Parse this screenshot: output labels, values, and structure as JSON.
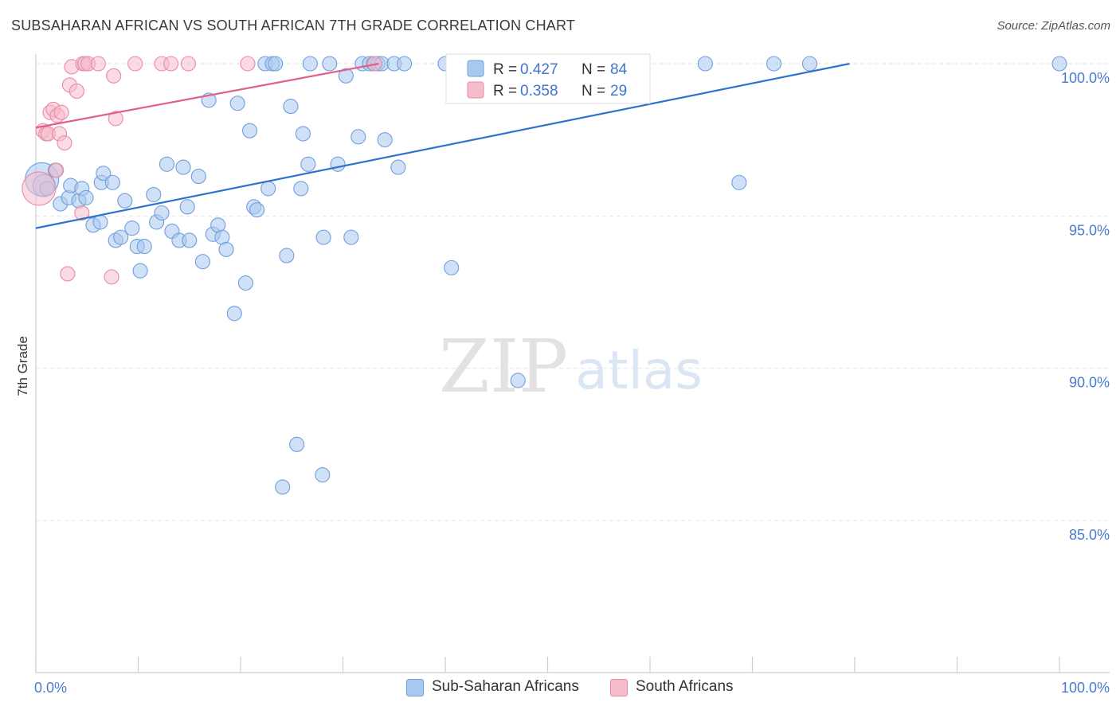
{
  "header": {
    "title": "SUBSAHARAN AFRICAN VS SOUTH AFRICAN 7TH GRADE CORRELATION CHART",
    "source": "Source: ZipAtlas.com"
  },
  "watermark": {
    "zip": "ZIP",
    "atlas": "atlas"
  },
  "colors": {
    "blue_fill": "#a9c8f0",
    "blue_stroke": "#6f9fdc",
    "blue_line": "#2f72cc",
    "pink_fill": "#f6bccc",
    "pink_stroke": "#e88aa6",
    "pink_line": "#e0608a",
    "tick_text": "#4a7bd0",
    "grid": "#e6e6e6"
  },
  "legend_box": {
    "rows": [
      {
        "r_label": "R = ",
        "r_value": "0.427",
        "n_label": "N = ",
        "n_value": "84",
        "series": "blue"
      },
      {
        "r_label": "R = ",
        "r_value": "0.358",
        "n_label": "N = ",
        "n_value": "29",
        "series": "pink"
      }
    ]
  },
  "legend_bottom": [
    {
      "label": "Sub-Saharan Africans",
      "series": "blue"
    },
    {
      "label": "South Africans",
      "series": "pink"
    }
  ],
  "chart_data": {
    "type": "scatter",
    "title": "SUBSAHARAN AFRICAN VS SOUTH AFRICAN 7TH GRADE CORRELATION CHART",
    "xlabel": "",
    "ylabel": "7th Grade",
    "xlim": [
      0,
      100
    ],
    "ylim": [
      80.5,
      101.0
    ],
    "x_tick_labels": [
      {
        "value": 0,
        "label": "0.0%"
      },
      {
        "value": 100,
        "label": "100.0%"
      }
    ],
    "y_ticks": [
      {
        "value": 100,
        "label": "100.0%"
      },
      {
        "value": 95,
        "label": "95.0%"
      },
      {
        "value": 90,
        "label": "90.0%"
      },
      {
        "value": 85,
        "label": "85.0%"
      }
    ],
    "grid": true,
    "legend_position": "top-center",
    "series": [
      {
        "name": "Sub-Saharan Africans",
        "color": "#a9c8f0",
        "R": 0.427,
        "N": 84,
        "trend": {
          "x": [
            0,
            79.5
          ],
          "y": [
            94.6,
            100.0
          ]
        },
        "points": [
          {
            "x": 0.6,
            "y": 96.2,
            "s": 3
          },
          {
            "x": 0.8,
            "y": 96.0,
            "s": 2
          },
          {
            "x": 1.1,
            "y": 95.9,
            "s": 1
          },
          {
            "x": 1.9,
            "y": 96.5,
            "s": 1
          },
          {
            "x": 2.4,
            "y": 95.4,
            "s": 1
          },
          {
            "x": 3.2,
            "y": 95.6,
            "s": 1
          },
          {
            "x": 3.4,
            "y": 96.0,
            "s": 1
          },
          {
            "x": 4.2,
            "y": 95.5,
            "s": 1
          },
          {
            "x": 4.5,
            "y": 95.9,
            "s": 1
          },
          {
            "x": 4.9,
            "y": 95.6,
            "s": 1
          },
          {
            "x": 5.6,
            "y": 94.7,
            "s": 1
          },
          {
            "x": 6.4,
            "y": 96.1,
            "s": 1
          },
          {
            "x": 6.3,
            "y": 94.8,
            "s": 1
          },
          {
            "x": 6.6,
            "y": 96.4,
            "s": 1
          },
          {
            "x": 7.5,
            "y": 96.1,
            "s": 1
          },
          {
            "x": 7.8,
            "y": 94.2,
            "s": 1
          },
          {
            "x": 8.3,
            "y": 94.3,
            "s": 1
          },
          {
            "x": 8.7,
            "y": 95.5,
            "s": 1
          },
          {
            "x": 9.4,
            "y": 94.6,
            "s": 1
          },
          {
            "x": 9.9,
            "y": 94.0,
            "s": 1
          },
          {
            "x": 10.2,
            "y": 93.2,
            "s": 1
          },
          {
            "x": 10.6,
            "y": 94.0,
            "s": 1
          },
          {
            "x": 11.5,
            "y": 95.7,
            "s": 1
          },
          {
            "x": 11.8,
            "y": 94.8,
            "s": 1
          },
          {
            "x": 12.3,
            "y": 95.1,
            "s": 1
          },
          {
            "x": 12.8,
            "y": 96.7,
            "s": 1
          },
          {
            "x": 13.3,
            "y": 94.5,
            "s": 1
          },
          {
            "x": 14.0,
            "y": 94.2,
            "s": 1
          },
          {
            "x": 14.4,
            "y": 96.6,
            "s": 1
          },
          {
            "x": 14.8,
            "y": 95.3,
            "s": 1
          },
          {
            "x": 15.0,
            "y": 94.2,
            "s": 1
          },
          {
            "x": 15.9,
            "y": 96.3,
            "s": 1
          },
          {
            "x": 16.3,
            "y": 93.5,
            "s": 1
          },
          {
            "x": 16.9,
            "y": 98.8,
            "s": 1
          },
          {
            "x": 17.3,
            "y": 94.4,
            "s": 1
          },
          {
            "x": 17.8,
            "y": 94.7,
            "s": 1
          },
          {
            "x": 18.2,
            "y": 94.3,
            "s": 1
          },
          {
            "x": 18.6,
            "y": 93.9,
            "s": 1
          },
          {
            "x": 19.4,
            "y": 91.8,
            "s": 1
          },
          {
            "x": 19.7,
            "y": 98.7,
            "s": 1
          },
          {
            "x": 20.5,
            "y": 92.8,
            "s": 1
          },
          {
            "x": 20.9,
            "y": 97.8,
            "s": 1
          },
          {
            "x": 21.3,
            "y": 95.3,
            "s": 1
          },
          {
            "x": 21.6,
            "y": 95.2,
            "s": 1
          },
          {
            "x": 22.4,
            "y": 100.0,
            "s": 1
          },
          {
            "x": 22.7,
            "y": 95.9,
            "s": 1
          },
          {
            "x": 23.1,
            "y": 100.0,
            "s": 1
          },
          {
            "x": 23.4,
            "y": 100.0,
            "s": 1
          },
          {
            "x": 24.1,
            "y": 86.1,
            "s": 1
          },
          {
            "x": 24.5,
            "y": 93.7,
            "s": 1
          },
          {
            "x": 24.9,
            "y": 98.6,
            "s": 1
          },
          {
            "x": 25.5,
            "y": 87.5,
            "s": 1
          },
          {
            "x": 25.9,
            "y": 95.9,
            "s": 1
          },
          {
            "x": 26.1,
            "y": 97.7,
            "s": 1
          },
          {
            "x": 26.6,
            "y": 96.7,
            "s": 1
          },
          {
            "x": 26.8,
            "y": 100.0,
            "s": 1
          },
          {
            "x": 28.0,
            "y": 86.5,
            "s": 1
          },
          {
            "x": 28.1,
            "y": 94.3,
            "s": 1
          },
          {
            "x": 28.7,
            "y": 100.0,
            "s": 1
          },
          {
            "x": 29.5,
            "y": 96.7,
            "s": 1
          },
          {
            "x": 30.3,
            "y": 99.6,
            "s": 1
          },
          {
            "x": 30.8,
            "y": 94.3,
            "s": 1
          },
          {
            "x": 31.5,
            "y": 97.6,
            "s": 1
          },
          {
            "x": 31.9,
            "y": 100.0,
            "s": 1
          },
          {
            "x": 32.6,
            "y": 100.0,
            "s": 1
          },
          {
            "x": 33.0,
            "y": 100.0,
            "s": 1
          },
          {
            "x": 33.4,
            "y": 100.0,
            "s": 1
          },
          {
            "x": 33.8,
            "y": 100.0,
            "s": 1
          },
          {
            "x": 34.1,
            "y": 97.5,
            "s": 1
          },
          {
            "x": 35.0,
            "y": 100.0,
            "s": 1
          },
          {
            "x": 35.4,
            "y": 96.6,
            "s": 1
          },
          {
            "x": 36.0,
            "y": 100.0,
            "s": 1
          },
          {
            "x": 40.0,
            "y": 100.0,
            "s": 1
          },
          {
            "x": 40.6,
            "y": 93.3,
            "s": 1
          },
          {
            "x": 41.2,
            "y": 100.0,
            "s": 1
          },
          {
            "x": 47.1,
            "y": 89.6,
            "s": 1
          },
          {
            "x": 53.5,
            "y": 100.0,
            "s": 1
          },
          {
            "x": 55.9,
            "y": 100.0,
            "s": 1
          },
          {
            "x": 59.3,
            "y": 100.0,
            "s": 1
          },
          {
            "x": 65.4,
            "y": 100.0,
            "s": 1
          },
          {
            "x": 68.7,
            "y": 96.1,
            "s": 1
          },
          {
            "x": 72.1,
            "y": 100.0,
            "s": 1
          },
          {
            "x": 75.6,
            "y": 100.0,
            "s": 1
          },
          {
            "x": 100.0,
            "y": 100.0,
            "s": 1
          }
        ]
      },
      {
        "name": "South Africans",
        "color": "#f6bccc",
        "R": 0.358,
        "N": 29,
        "trend": {
          "x": [
            0,
            33.5
          ],
          "y": [
            97.9,
            100.0
          ]
        },
        "points": [
          {
            "x": 0.3,
            "y": 95.9,
            "s": 3
          },
          {
            "x": 0.7,
            "y": 97.8,
            "s": 1
          },
          {
            "x": 1.0,
            "y": 97.7,
            "s": 1
          },
          {
            "x": 1.2,
            "y": 97.7,
            "s": 1
          },
          {
            "x": 1.4,
            "y": 98.4,
            "s": 1
          },
          {
            "x": 1.7,
            "y": 98.5,
            "s": 1
          },
          {
            "x": 2.0,
            "y": 96.5,
            "s": 1
          },
          {
            "x": 2.1,
            "y": 98.3,
            "s": 1
          },
          {
            "x": 2.3,
            "y": 97.7,
            "s": 1
          },
          {
            "x": 2.5,
            "y": 98.4,
            "s": 1
          },
          {
            "x": 2.8,
            "y": 97.4,
            "s": 1
          },
          {
            "x": 3.1,
            "y": 93.1,
            "s": 1
          },
          {
            "x": 3.3,
            "y": 99.3,
            "s": 1
          },
          {
            "x": 3.5,
            "y": 99.9,
            "s": 1
          },
          {
            "x": 4.0,
            "y": 99.1,
            "s": 1
          },
          {
            "x": 4.5,
            "y": 95.1,
            "s": 1
          },
          {
            "x": 4.6,
            "y": 100.0,
            "s": 1
          },
          {
            "x": 4.8,
            "y": 100.0,
            "s": 1
          },
          {
            "x": 5.1,
            "y": 100.0,
            "s": 1
          },
          {
            "x": 6.1,
            "y": 100.0,
            "s": 1
          },
          {
            "x": 7.4,
            "y": 93.0,
            "s": 1
          },
          {
            "x": 7.6,
            "y": 99.6,
            "s": 1
          },
          {
            "x": 7.8,
            "y": 98.2,
            "s": 1
          },
          {
            "x": 9.7,
            "y": 100.0,
            "s": 1
          },
          {
            "x": 12.3,
            "y": 100.0,
            "s": 1
          },
          {
            "x": 13.2,
            "y": 100.0,
            "s": 1
          },
          {
            "x": 14.9,
            "y": 100.0,
            "s": 1
          },
          {
            "x": 20.7,
            "y": 100.0,
            "s": 1
          },
          {
            "x": 33.1,
            "y": 100.0,
            "s": 1
          }
        ]
      }
    ]
  }
}
